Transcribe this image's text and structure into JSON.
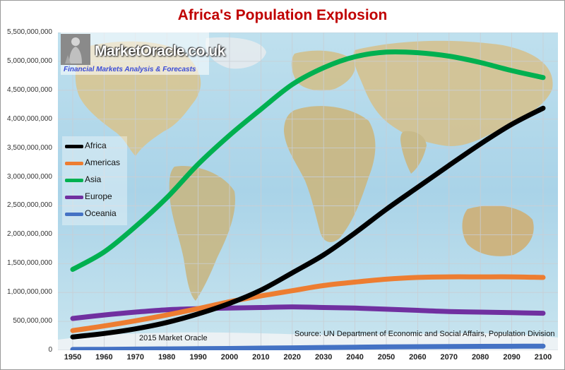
{
  "chart_data": {
    "type": "line",
    "title": "Africa's Population Explosion",
    "xlabel": "",
    "ylabel": "",
    "x": [
      1950,
      1960,
      1970,
      1980,
      1990,
      2000,
      2010,
      2020,
      2030,
      2040,
      2050,
      2060,
      2070,
      2080,
      2090,
      2100
    ],
    "xlim": [
      1950,
      2100
    ],
    "ylim": [
      0,
      5500000000
    ],
    "yticks": [
      "0",
      "500,000,000",
      "1,000,000,000",
      "1,500,000,000",
      "2,000,000,000",
      "2,500,000,000",
      "3,000,000,000",
      "3,500,000,000",
      "4,000,000,000",
      "4,500,000,000",
      "5,000,000,000",
      "5,500,000,000"
    ],
    "ytick_values": [
      0,
      500000000,
      1000000000,
      1500000000,
      2000000000,
      2500000000,
      3000000000,
      3500000000,
      4000000000,
      4500000000,
      5000000000,
      5500000000
    ],
    "xticks": [
      "1950",
      "1960",
      "1970",
      "1980",
      "1990",
      "2000",
      "2010",
      "2020",
      "2030",
      "2040",
      "2050",
      "2060",
      "2070",
      "2080",
      "2090",
      "2100"
    ],
    "legend_position": "left",
    "grid": true,
    "series": [
      {
        "name": "Africa",
        "color": "#000000",
        "values": [
          230000000,
          290000000,
          370000000,
          480000000,
          630000000,
          810000000,
          1040000000,
          1340000000,
          1650000000,
          2030000000,
          2440000000,
          2820000000,
          3200000000,
          3570000000,
          3910000000,
          4190000000
        ]
      },
      {
        "name": "Americas",
        "color": "#ed7d31",
        "values": [
          340000000,
          420000000,
          510000000,
          610000000,
          720000000,
          840000000,
          940000000,
          1030000000,
          1120000000,
          1180000000,
          1230000000,
          1260000000,
          1270000000,
          1270000000,
          1270000000,
          1260000000
        ]
      },
      {
        "name": "Asia",
        "color": "#00b050",
        "values": [
          1400000000,
          1700000000,
          2140000000,
          2640000000,
          3220000000,
          3720000000,
          4170000000,
          4600000000,
          4890000000,
          5080000000,
          5160000000,
          5150000000,
          5090000000,
          4980000000,
          4840000000,
          4720000000
        ]
      },
      {
        "name": "Europe",
        "color": "#7030a0",
        "values": [
          550000000,
          610000000,
          660000000,
          700000000,
          720000000,
          730000000,
          740000000,
          750000000,
          740000000,
          730000000,
          710000000,
          690000000,
          670000000,
          660000000,
          650000000,
          640000000
        ]
      },
      {
        "name": "Oceania",
        "color": "#4472c4",
        "values": [
          13000000,
          16000000,
          20000000,
          23000000,
          27000000,
          31000000,
          37000000,
          42000000,
          48000000,
          53000000,
          57000000,
          61000000,
          64000000,
          67000000,
          69000000,
          71000000
        ]
      }
    ]
  },
  "watermark": {
    "brand": "MarketOracle.co.uk",
    "tagline": "Financial Markets Analysis & Forecasts"
  },
  "credit": "2015 Market Oracle",
  "source": "Source: UN Department of Economic and Social Affairs, Population Division",
  "colors": {
    "title": "#c00000",
    "ocean": "#b9dcea",
    "land": "#d8c494",
    "grid": "#c9ced4"
  }
}
